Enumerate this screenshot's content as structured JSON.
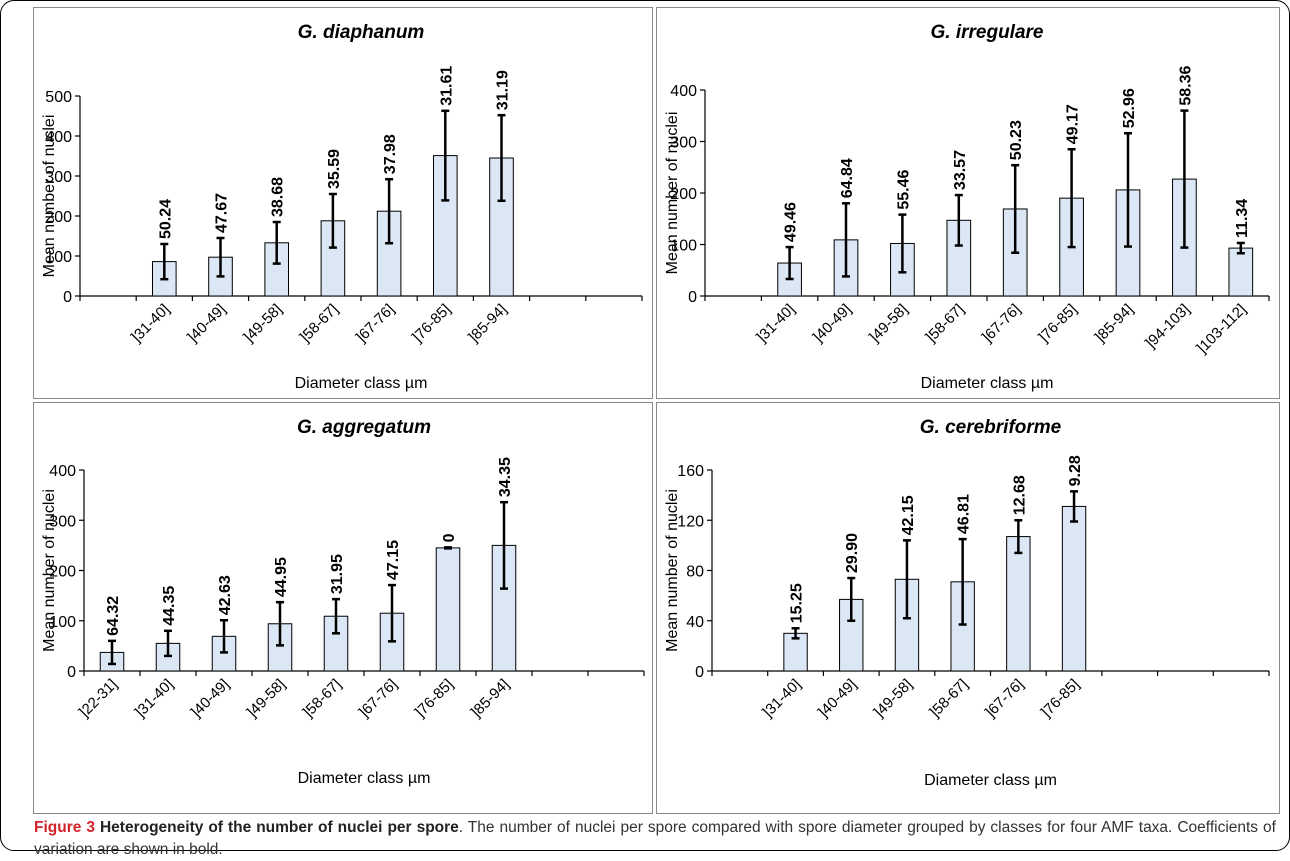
{
  "caption": {
    "label": "Figure 3",
    "title": "Heterogeneity of the number of nuclei per spore",
    "body": ". The number of nuclei per spore compared with spore diameter grouped by classes for four AMF taxa. Coefficients of variation are shown in bold."
  },
  "chart_data": [
    {
      "type": "bar",
      "title": "G. diaphanum",
      "xlabel": "Diameter class µm",
      "ylabel": "Mean number of nuclei",
      "ylim": [
        0,
        500
      ],
      "yticks": [
        0,
        100,
        200,
        300,
        400,
        500
      ],
      "slots": 10,
      "first_slot": 1,
      "categories": [
        "]31-40]",
        "]40-49]",
        "]49-58]",
        "]58-67]",
        "]67-76]",
        "]76-85]",
        "]85-94]"
      ],
      "values": [
        86,
        97,
        133,
        188,
        212,
        351,
        345
      ],
      "errors": [
        44,
        48,
        52,
        67,
        80,
        112,
        107
      ],
      "data_labels": [
        "50.24",
        "47.67",
        "38.68",
        "35.59",
        "37.98",
        "31.61",
        "31.19"
      ],
      "bar_color": "#dbe7f4",
      "legend": "none"
    },
    {
      "type": "bar",
      "title": "G. irregulare",
      "xlabel": "Diameter class µm",
      "ylabel": "Mean number of nuclei",
      "ylim": [
        0,
        400
      ],
      "yticks": [
        0,
        100,
        200,
        300,
        400
      ],
      "slots": 10,
      "first_slot": 1,
      "categories": [
        "]31-40]",
        "]40-49]",
        "]49-58]",
        "]58-67]",
        "]67-76]",
        "]76-85]",
        "]85-94]",
        "]94-103]",
        "]103-112]"
      ],
      "values": [
        64,
        109,
        102,
        147,
        169,
        190,
        206,
        227,
        93
      ],
      "errors": [
        31,
        71,
        56,
        49,
        85,
        95,
        110,
        133,
        10
      ],
      "data_labels": [
        "49.46",
        "64.84",
        "55.46",
        "33.57",
        "50.23",
        "49.17",
        "52.96",
        "58.36",
        "11.34"
      ],
      "bar_color": "#dbe7f4",
      "legend": "none"
    },
    {
      "type": "bar",
      "title": "G. aggregatum",
      "xlabel": "Diameter class µm",
      "ylabel": "Mean number of nuclei",
      "ylim": [
        0,
        400
      ],
      "yticks": [
        0,
        100,
        200,
        300,
        400
      ],
      "slots": 10,
      "first_slot": 0,
      "categories": [
        "]22-31]",
        "]31-40]",
        "]40-49]",
        "]49-58]",
        "]58-67]",
        "]67-76]",
        "]76-85]",
        "]85-94]"
      ],
      "values": [
        37,
        55,
        69,
        94,
        109,
        115,
        245,
        250
      ],
      "errors": [
        23,
        25,
        32,
        43,
        34,
        56,
        1,
        86
      ],
      "data_labels": [
        "64.32",
        "44.35",
        "42.63",
        "44.95",
        "31.95",
        "47.15",
        "0",
        "34.35"
      ],
      "bar_color": "#dbe7f4",
      "legend": "none"
    },
    {
      "type": "bar",
      "title": "G. cerebriforme",
      "xlabel": "Diameter class µm",
      "ylabel": "Mean number of nuclei",
      "ylim": [
        0,
        160
      ],
      "yticks": [
        0,
        40,
        80,
        120,
        160
      ],
      "slots": 10,
      "first_slot": 1,
      "categories": [
        "]31-40]",
        "]40-49]",
        "]49-58]",
        "]58-67]",
        "]67-76]",
        "]76-85]"
      ],
      "values": [
        30,
        57,
        73,
        71,
        107,
        131
      ],
      "errors": [
        4,
        17,
        31,
        34,
        13,
        12
      ],
      "data_labels": [
        "15.25",
        "29.90",
        "42.15",
        "46.81",
        "12.68",
        "9.28"
      ],
      "bar_color": "#dbe7f4",
      "legend": "none"
    }
  ]
}
